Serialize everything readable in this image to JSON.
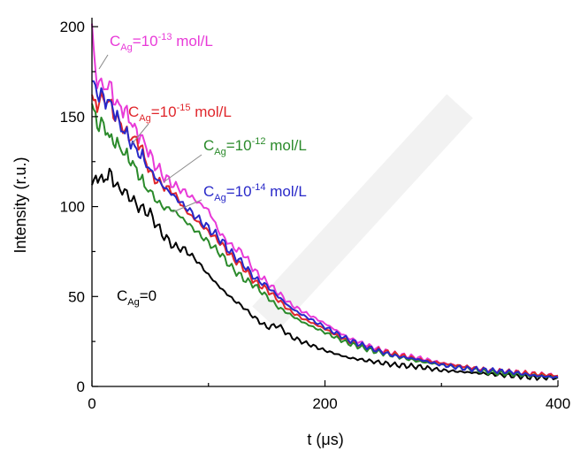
{
  "chart_data": {
    "type": "line",
    "xlabel_parts": {
      "main": "t (",
      "greek": "μ",
      "unit": "s)"
    },
    "ylabel": "Intensity (r.u.)",
    "xlim": [
      0,
      400
    ],
    "ylim": [
      0,
      205
    ],
    "x_ticks": [
      "0",
      "200",
      "400"
    ],
    "y_ticks": [
      "0",
      "50",
      "100",
      "150",
      "200"
    ],
    "grid": false,
    "series": [
      {
        "name": "C_Ag=0",
        "color": "#000000",
        "label": {
          "main": "C",
          "sub": "Ag",
          "rest": "=0"
        },
        "x": [
          0,
          5,
          10,
          15,
          20,
          30,
          40,
          50,
          60,
          70,
          80,
          90,
          100,
          110,
          120,
          130,
          140,
          150,
          160,
          170,
          180,
          200,
          220,
          240,
          260,
          280,
          300,
          320,
          340,
          360,
          380,
          400
        ],
        "y": [
          112,
          117,
          114,
          119,
          112,
          107,
          100,
          96,
          85,
          78,
          76,
          70,
          62,
          55,
          49,
          44,
          38,
          33,
          34,
          28,
          25,
          20,
          16,
          14,
          12,
          11,
          9,
          8,
          7,
          6,
          5,
          5
        ]
      },
      {
        "name": "C_Ag=10^-13 mol/L",
        "color": "#e83ad8",
        "label": {
          "main": "C",
          "sub": "Ag",
          "mid": "=10",
          "sup": "-13",
          "rest": " mol/L"
        },
        "x": [
          0,
          3,
          6,
          10,
          15,
          20,
          25,
          30,
          35,
          40,
          45,
          50,
          60,
          70,
          80,
          90,
          100,
          110,
          120,
          130,
          140,
          150,
          160,
          170,
          180,
          200,
          220,
          240,
          260,
          280,
          300,
          320,
          340,
          360,
          380,
          400
        ],
        "y": [
          200,
          172,
          170,
          166,
          168,
          158,
          155,
          152,
          145,
          140,
          136,
          128,
          118,
          112,
          108,
          103,
          98,
          85,
          78,
          74,
          64,
          58,
          52,
          46,
          42,
          35,
          27,
          22,
          18,
          16,
          13,
          11,
          9,
          8,
          7,
          6
        ]
      },
      {
        "name": "C_Ag=10^-15 mol/L",
        "color": "#e0262b",
        "label": {
          "main": "C",
          "sub": "Ag",
          "mid": "=10",
          "sup": "-15",
          "rest": " mol/L"
        },
        "x": [
          0,
          3,
          6,
          10,
          15,
          20,
          25,
          30,
          35,
          40,
          45,
          50,
          60,
          70,
          80,
          90,
          100,
          110,
          120,
          130,
          140,
          150,
          160,
          170,
          180,
          200,
          220,
          240,
          260,
          280,
          300,
          320,
          340,
          360,
          380,
          400
        ],
        "y": [
          160,
          156,
          158,
          160,
          158,
          150,
          146,
          140,
          138,
          136,
          128,
          118,
          112,
          108,
          98,
          92,
          86,
          80,
          72,
          66,
          58,
          54,
          48,
          42,
          38,
          32,
          25,
          21,
          18,
          15,
          13,
          11,
          9,
          8,
          7,
          6
        ]
      },
      {
        "name": "C_Ag=10^-12 mol/L",
        "color": "#2a8a2a",
        "label": {
          "main": "C",
          "sub": "Ag",
          "mid": "=10",
          "sup": "-12",
          "rest": " mol/L"
        },
        "x": [
          0,
          3,
          6,
          10,
          15,
          20,
          25,
          30,
          35,
          40,
          45,
          50,
          60,
          70,
          80,
          90,
          100,
          110,
          120,
          130,
          140,
          150,
          160,
          170,
          180,
          200,
          220,
          240,
          260,
          280,
          300,
          320,
          340,
          360,
          380,
          400
        ],
        "y": [
          155,
          150,
          144,
          146,
          138,
          136,
          132,
          128,
          124,
          118,
          112,
          108,
          100,
          98,
          92,
          86,
          80,
          74,
          66,
          60,
          56,
          50,
          44,
          40,
          36,
          30,
          24,
          20,
          17,
          14,
          12,
          10,
          8,
          7,
          6,
          5
        ]
      },
      {
        "name": "C_Ag=10^-14 mol/L",
        "color": "#2828c8",
        "label": {
          "main": "C",
          "sub": "Ag",
          "mid": "=10",
          "sup": "-14",
          "rest": " mol/L"
        },
        "x": [
          0,
          3,
          6,
          10,
          15,
          20,
          25,
          30,
          35,
          40,
          45,
          50,
          60,
          70,
          80,
          90,
          100,
          110,
          120,
          130,
          140,
          150,
          160,
          170,
          180,
          200,
          220,
          240,
          260,
          280,
          300,
          320,
          340,
          360,
          380,
          400
        ],
        "y": [
          168,
          166,
          162,
          160,
          158,
          152,
          144,
          140,
          134,
          130,
          126,
          120,
          112,
          106,
          100,
          94,
          88,
          82,
          74,
          68,
          60,
          56,
          50,
          44,
          40,
          33,
          26,
          21,
          17,
          15,
          12,
          10,
          9,
          8,
          6,
          5
        ]
      }
    ]
  }
}
